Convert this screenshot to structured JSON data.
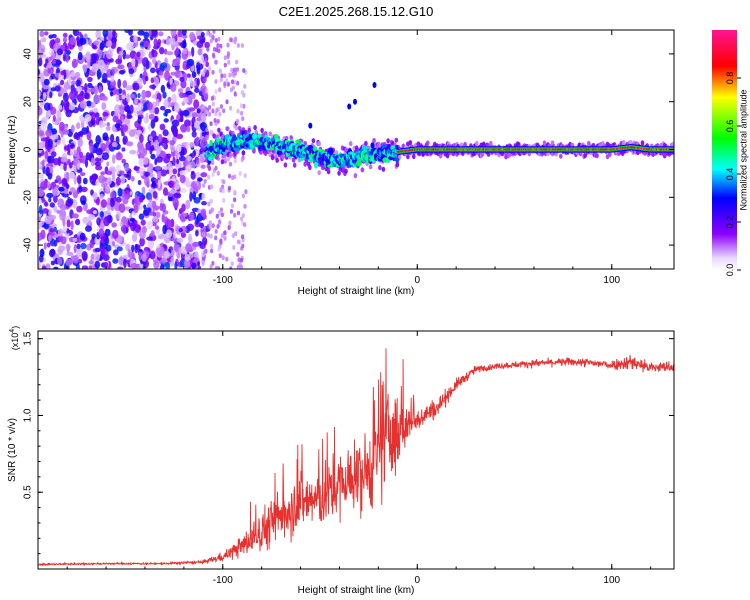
{
  "title": "C2E1.2025.268.15.12.G10",
  "chart_data": [
    {
      "type": "heatmap",
      "xlabel": "Height of straight line (km)",
      "ylabel": "Frequency (Hz)",
      "xlim": [
        -195,
        132
      ],
      "ylim": [
        -50,
        50
      ],
      "xticks": [
        -100,
        0,
        100
      ],
      "xtick_labels": [
        "-100",
        "0",
        "100"
      ],
      "yticks": [
        -40,
        -20,
        0,
        20,
        40
      ],
      "ytick_labels": [
        "-40",
        "-20",
        "0",
        "20",
        "40"
      ],
      "grid": false,
      "description_regions": [
        {
          "x_range": [
            -195,
            -108
          ],
          "freq_range": [
            -50,
            50
          ],
          "amplitude": 0.2,
          "pattern": "dense noise scatter"
        },
        {
          "x_range": [
            -108,
            -10
          ],
          "freq_range": [
            -10,
            8
          ],
          "amplitude": 0.4,
          "pattern": "wandering signal trace"
        },
        {
          "x_range": [
            -10,
            132
          ],
          "freq_range": [
            -1,
            1
          ],
          "amplitude": 0.85,
          "pattern": "steady line at 0 Hz"
        }
      ],
      "trace": {
        "x": [
          -108,
          -100,
          -90,
          -80,
          -70,
          -60,
          -50,
          -40,
          -30,
          -20,
          -10,
          0,
          20,
          60,
          100,
          110,
          120,
          132
        ],
        "freq": [
          -2,
          2,
          4,
          3,
          1,
          -1,
          -3,
          -5,
          -3,
          -2,
          -1,
          0,
          0,
          0,
          0,
          1,
          0,
          0
        ]
      },
      "stray_points": [
        {
          "x": -55,
          "freq": 10
        },
        {
          "x": -35,
          "freq": 18
        },
        {
          "x": -32,
          "freq": 20
        },
        {
          "x": -22,
          "freq": 27
        }
      ],
      "colorbar": {
        "label": "Normalized spectral amplitude",
        "range": [
          0,
          1
        ],
        "ticks": [
          0.0,
          0.2,
          0.4,
          0.6,
          0.8
        ],
        "tick_labels": [
          "0.0",
          "0.2",
          "0.4",
          "0.6",
          "0.8"
        ],
        "colors": [
          "#ffffff",
          "#8b00ff",
          "#0000ff",
          "#00ffff",
          "#00ff00",
          "#ffff00",
          "#ff0000",
          "#ff1493"
        ]
      }
    },
    {
      "type": "line",
      "xlabel": "Height of straight line (km)",
      "ylabel": "SNR (10 * v/v)",
      "multiplier_base": "(x10",
      "multiplier_exp": "4",
      "multiplier_close": ")",
      "xlim": [
        -195,
        132
      ],
      "ylim": [
        0,
        15500
      ],
      "xticks": [
        -100,
        0,
        100
      ],
      "xtick_labels": [
        "-100",
        "0",
        "100"
      ],
      "yticks": [
        5000,
        10000,
        15000
      ],
      "ytick_labels": [
        "0.5",
        "1.0",
        "1.5"
      ],
      "color": "#e8302e",
      "series": [
        {
          "name": "SNR",
          "x": [
            -195,
            -160,
            -130,
            -110,
            -100,
            -90,
            -80,
            -70,
            -60,
            -50,
            -40,
            -30,
            -20,
            -15,
            -10,
            -5,
            0,
            10,
            20,
            30,
            40,
            60,
            80,
            100,
            110,
            120,
            132
          ],
          "y": [
            300,
            350,
            350,
            450,
            800,
            1500,
            2500,
            3500,
            4500,
            4500,
            5500,
            6000,
            7000,
            9000,
            8500,
            9500,
            9800,
            10500,
            12000,
            13000,
            13200,
            13400,
            13500,
            13300,
            13500,
            13100,
            13200
          ],
          "noise": [
            80,
            80,
            80,
            150,
            400,
            900,
            1800,
            2200,
            2500,
            2500,
            2800,
            3000,
            3500,
            4000,
            3500,
            1500,
            1000,
            800,
            500,
            300,
            250,
            300,
            350,
            400,
            700,
            500,
            400
          ]
        }
      ]
    }
  ]
}
